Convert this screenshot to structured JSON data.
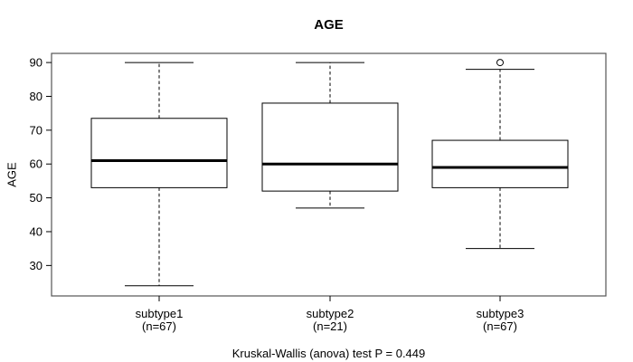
{
  "chart_data": {
    "type": "boxplot",
    "title": "AGE",
    "ylabel": "AGE",
    "xlabel": "",
    "ylim": [
      21,
      92.7
    ],
    "yticks": [
      30,
      40,
      50,
      60,
      70,
      80,
      90
    ],
    "grid": false,
    "legend": null,
    "groups": [
      {
        "label": "subtype1",
        "n_label": "(n=67)",
        "n": 67,
        "whisker_low": 24,
        "q1": 53,
        "median": 61,
        "q3": 73.5,
        "whisker_high": 90,
        "outliers": []
      },
      {
        "label": "subtype2",
        "n_label": "(n=21)",
        "n": 21,
        "whisker_low": 47,
        "q1": 52,
        "median": 60,
        "q3": 78,
        "whisker_high": 90,
        "outliers": []
      },
      {
        "label": "subtype3",
        "n_label": "(n=67)",
        "n": 67,
        "whisker_low": 35,
        "q1": 53,
        "median": 59,
        "q3": 67,
        "whisker_high": 88,
        "outliers": [
          90
        ]
      }
    ],
    "annotation": "Kruskal-Wallis (anova) test P = 0.449",
    "colors": {
      "data_line": "#000000",
      "frame": "#555555",
      "box_fill": "#ffffff",
      "background": "#ffffff"
    }
  }
}
